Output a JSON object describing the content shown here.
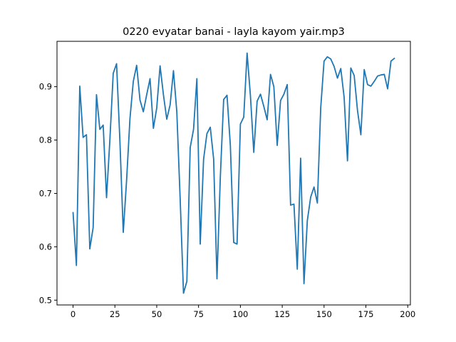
{
  "chart_data": {
    "type": "line",
    "title": "0220 evyatar banai - layla kayom yair.mp3",
    "xlabel": "",
    "ylabel": "",
    "xlim": [
      -9.6,
      201.6
    ],
    "ylim": [
      0.491,
      0.985
    ],
    "xticks": [
      0,
      25,
      50,
      75,
      100,
      125,
      150,
      175,
      200
    ],
    "xtick_labels": [
      "0",
      "25",
      "50",
      "75",
      "100",
      "125",
      "150",
      "175",
      "200"
    ],
    "yticks": [
      0.5,
      0.6,
      0.7,
      0.8,
      0.9
    ],
    "ytick_labels": [
      "0.5",
      "0.6",
      "0.7",
      "0.8",
      "0.9"
    ],
    "grid": false,
    "line_color": "#1f77b4",
    "series": [
      {
        "x": [
          0,
          2,
          4,
          6,
          8,
          10,
          12,
          14,
          16,
          18,
          20,
          22,
          24,
          26,
          28,
          30,
          32,
          34,
          36,
          38,
          40,
          42,
          44,
          46,
          48,
          50,
          52,
          54,
          56,
          58,
          60,
          62,
          64,
          66,
          68,
          70,
          72,
          74,
          76,
          78,
          80,
          82,
          84,
          86,
          88,
          90,
          92,
          94,
          96,
          98,
          100,
          102,
          104,
          106,
          108,
          110,
          112,
          114,
          116,
          118,
          120,
          122,
          124,
          126,
          128,
          130,
          132,
          134,
          136,
          138,
          140,
          142,
          144,
          146,
          148,
          150,
          152,
          154,
          156,
          158,
          160,
          162,
          164,
          166,
          168,
          170,
          172,
          174,
          176,
          178,
          180,
          182,
          184,
          186,
          188,
          190,
          192
        ],
        "values": [
          0.664,
          0.565,
          0.901,
          0.805,
          0.81,
          0.596,
          0.636,
          0.885,
          0.82,
          0.828,
          0.692,
          0.8,
          0.925,
          0.943,
          0.798,
          0.627,
          0.725,
          0.84,
          0.91,
          0.94,
          0.875,
          0.853,
          0.885,
          0.915,
          0.822,
          0.86,
          0.939,
          0.885,
          0.839,
          0.866,
          0.93,
          0.853,
          0.69,
          0.513,
          0.535,
          0.786,
          0.82,
          0.915,
          0.605,
          0.764,
          0.812,
          0.824,
          0.765,
          0.54,
          0.73,
          0.876,
          0.884,
          0.79,
          0.608,
          0.605,
          0.83,
          0.843,
          0.963,
          0.883,
          0.777,
          0.873,
          0.886,
          0.863,
          0.838,
          0.923,
          0.9,
          0.79,
          0.874,
          0.886,
          0.904,
          0.678,
          0.68,
          0.558,
          0.766,
          0.531,
          0.649,
          0.693,
          0.712,
          0.682,
          0.86,
          0.948,
          0.956,
          0.952,
          0.938,
          0.916,
          0.934,
          0.88,
          0.761,
          0.935,
          0.921,
          0.855,
          0.81,
          0.932,
          0.904,
          0.901,
          0.91,
          0.92,
          0.922,
          0.923,
          0.896,
          0.948,
          0.953
        ]
      }
    ]
  }
}
